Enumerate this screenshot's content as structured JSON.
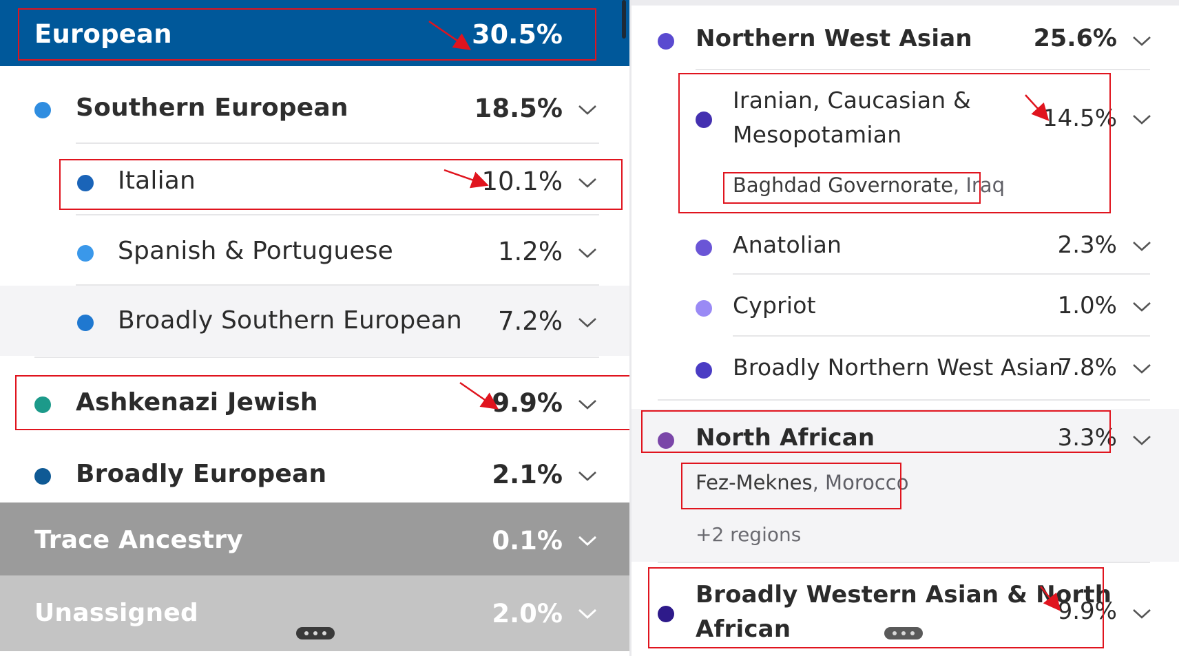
{
  "left": {
    "header": {
      "label": "European",
      "percent": "30.5%"
    },
    "southern": {
      "label": "Southern European",
      "percent": "18.5%"
    },
    "italian": {
      "label": "Italian",
      "percent": "10.1%"
    },
    "spanish": {
      "label": "Spanish & Portuguese",
      "percent": "1.2%"
    },
    "broad_southern": {
      "label": "Broadly Southern European",
      "percent": "7.2%"
    },
    "ashkenazi": {
      "label": "Ashkenazi Jewish",
      "percent": "9.9%"
    },
    "broad_european": {
      "label": "Broadly European",
      "percent": "2.1%"
    },
    "trace": {
      "label": "Trace Ancestry",
      "percent": "0.1%"
    },
    "unassigned": {
      "label": "Unassigned",
      "percent": "2.0%"
    }
  },
  "right": {
    "nwa": {
      "label": "Northern West Asian",
      "percent": "25.6%"
    },
    "iranian": {
      "label_line1": "Iranian, Caucasian &",
      "label_line2": "Mesopotamian",
      "percent": "14.5%",
      "region_bold": "Baghdad Governorate",
      "region_light": ", Iraq"
    },
    "anatolian": {
      "label": "Anatolian",
      "percent": "2.3%"
    },
    "cypriot": {
      "label": "Cypriot",
      "percent": "1.0%"
    },
    "broad_nwa": {
      "label": "Broadly Northern West Asian",
      "percent": "7.8%"
    },
    "north_african": {
      "label": "North African",
      "percent": "3.3%",
      "region_bold": "Fez-Meknes",
      "region_light": ", Morocco",
      "more_regions": "+2 regions"
    },
    "broad_wana": {
      "label_line1": "Broadly Western Asian & North",
      "label_line2": "African",
      "percent": "9.9%"
    }
  },
  "colors": {
    "header_blue": "#00589a",
    "southern_dot": "#2f8de0",
    "italian_dot": "#1a64b8",
    "spanish_dot": "#3a98ea",
    "broad_southern_dot": "#1f78d0",
    "ashkenazi_dot": "#1c9a8a",
    "broad_european_dot": "#0f5a95",
    "trace_bg": "#9b9b9b",
    "unassigned_bg": "#c4c4c4",
    "nwa_dot": "#5a4ad0",
    "iranian_dot": "#4430b0",
    "anatolian_dot": "#6a55d6",
    "cypriot_dot": "#9a8af5",
    "broad_nwa_dot": "#4a3cc4",
    "north_african_dot": "#7a46a8",
    "broad_wana_dot": "#2e1a8a",
    "annotation_red": "#e0141e"
  }
}
